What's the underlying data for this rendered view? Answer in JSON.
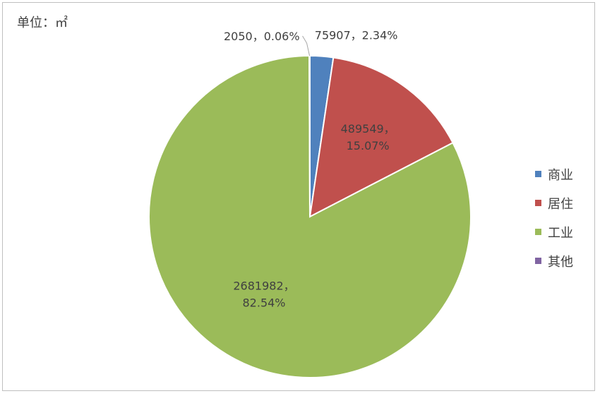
{
  "unit_label": "单位：㎡",
  "colors": {
    "commercial": "#4f81bd",
    "residential": "#c0504d",
    "industrial": "#9bbb59",
    "other": "#8064a2"
  },
  "chart_data": {
    "type": "pie",
    "title": "",
    "slices": [
      {
        "name": "商业",
        "value": 75907,
        "percent": "2.34%",
        "color": "#4f81bd",
        "label_line1": "75907，2.34%",
        "label_line2": ""
      },
      {
        "name": "居住",
        "value": 489549,
        "percent": "15.07%",
        "color": "#c0504d",
        "label_line1": "489549，",
        "label_line2": "15.07%"
      },
      {
        "name": "工业",
        "value": 2681982,
        "percent": "82.54%",
        "color": "#9bbb59",
        "label_line1": "2681982，",
        "label_line2": "82.54%"
      },
      {
        "name": "其他",
        "value": 2050,
        "percent": "0.06%",
        "color": "#8064a2",
        "label_line1": "2050，0.06%",
        "label_line2": ""
      }
    ],
    "legend": {
      "position": "right",
      "items": [
        "商业",
        "居住",
        "工业",
        "其他"
      ]
    }
  }
}
